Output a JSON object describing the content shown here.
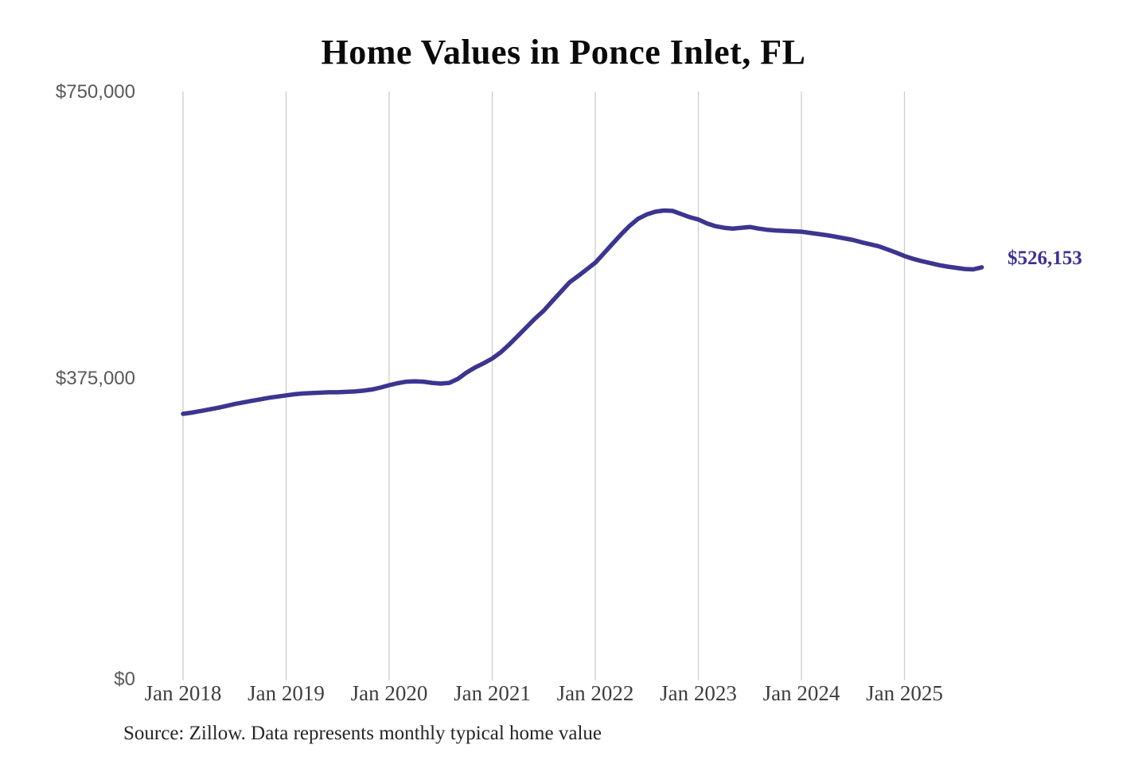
{
  "title": "Home Values in Ponce Inlet, FL",
  "source_note": "Source: Zillow. Data represents monthly typical home value",
  "end_label": "$526,153",
  "colors": {
    "line": "#3c3590",
    "grid": "#cccccc",
    "title_text": "#0a0a0a",
    "y_tick_text": "#595959",
    "x_tick_text": "#3e3e3e",
    "value_label_text": "#3b3295",
    "background": "#ffffff"
  },
  "y_axis": {
    "ticks": [
      "$750,000",
      "$375,000",
      "$0"
    ]
  },
  "chart_data": {
    "type": "line",
    "title": "Home Values in Ponce Inlet, FL",
    "xlabel": "",
    "ylabel": "",
    "unit": "USD",
    "ylim": [
      0,
      750000
    ],
    "y_tick_labels": [
      "$0",
      "$375,000",
      "$750,000"
    ],
    "x_tick_labels": [
      "Jan 2018",
      "Jan 2019",
      "Jan 2020",
      "Jan 2021",
      "Jan 2022",
      "Jan 2023",
      "Jan 2024",
      "Jan 2025"
    ],
    "frequency": "monthly",
    "x_start": "2018-01",
    "x_end": "2025-10",
    "grid": "vertical-only",
    "legend_position": "none",
    "end_annotation": {
      "label": "$526,153",
      "value": 526153
    },
    "series": [
      {
        "name": "Typical home value",
        "color": "#3c3590",
        "values": [
          339500,
          341000,
          343000,
          345000,
          347000,
          349500,
          352000,
          354000,
          356000,
          358000,
          360000,
          361500,
          363000,
          364500,
          365500,
          366000,
          366500,
          367000,
          367000,
          367500,
          368000,
          369000,
          370500,
          373000,
          376000,
          378500,
          380500,
          381000,
          380500,
          379000,
          378000,
          379000,
          384000,
          392000,
          398500,
          404000,
          410000,
          418000,
          428000,
          439000,
          450000,
          461000,
          471000,
          483000,
          495000,
          507000,
          515000,
          523500,
          532000,
          544000,
          556000,
          568000,
          579000,
          588000,
          593500,
          597000,
          598500,
          598000,
          594000,
          590000,
          587000,
          582000,
          578500,
          576500,
          575500,
          576500,
          577500,
          575500,
          574000,
          573000,
          572500,
          572000,
          571500,
          570000,
          568500,
          567000,
          565000,
          563000,
          561000,
          558000,
          555500,
          553000,
          549000,
          545000,
          540500,
          537000,
          534000,
          531500,
          529000,
          527000,
          525500,
          524000,
          523500,
          526153
        ]
      }
    ]
  }
}
